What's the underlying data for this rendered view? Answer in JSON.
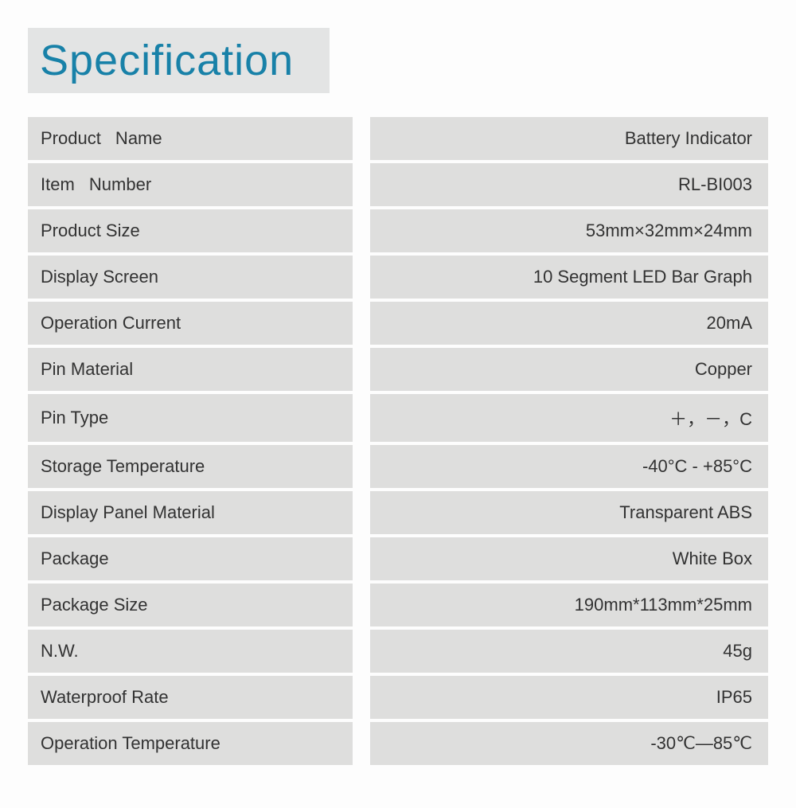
{
  "title": "Specification",
  "colors": {
    "title_text": "#1881a8",
    "cell_background": "#dededd",
    "title_background": "#e3e4e4",
    "page_background": "#fdfdfd",
    "text_color": "#323232"
  },
  "typography": {
    "title_fontsize": 54,
    "title_weight": 300,
    "cell_fontsize": 22,
    "cell_weight": 400
  },
  "layout": {
    "label_column_width": 408,
    "column_gap": 22,
    "row_gap": 4,
    "cell_padding_v": 14,
    "cell_padding_h": 16
  },
  "rows": [
    {
      "label": "Product   Name",
      "value": "Battery Indicator",
      "label_wide_space": true
    },
    {
      "label": "Item   Number",
      "value": "RL-BI003",
      "label_wide_space": true
    },
    {
      "label": "Product Size",
      "value": "53mm×32mm×24mm"
    },
    {
      "label": "Display Screen",
      "value": "10 Segment LED Bar Graph"
    },
    {
      "label": "Operation Current",
      "value": "20mA"
    },
    {
      "label": "Pin Material",
      "value": "Copper"
    },
    {
      "label": "Pin Type",
      "value": "＋，－，C"
    },
    {
      "label": "Storage Temperature",
      "value": "-40°C  -  +85°C"
    },
    {
      "label": "Display Panel Material",
      "value": "Transparent ABS"
    },
    {
      "label": "Package",
      "value": "White Box"
    },
    {
      "label": "Package Size",
      "value": "190mm*113mm*25mm"
    },
    {
      "label": "N.W.",
      "value": "45g"
    },
    {
      "label": "Waterproof Rate",
      "value": "IP65"
    },
    {
      "label": "Operation Temperature",
      "value": "-30℃—85℃"
    }
  ]
}
